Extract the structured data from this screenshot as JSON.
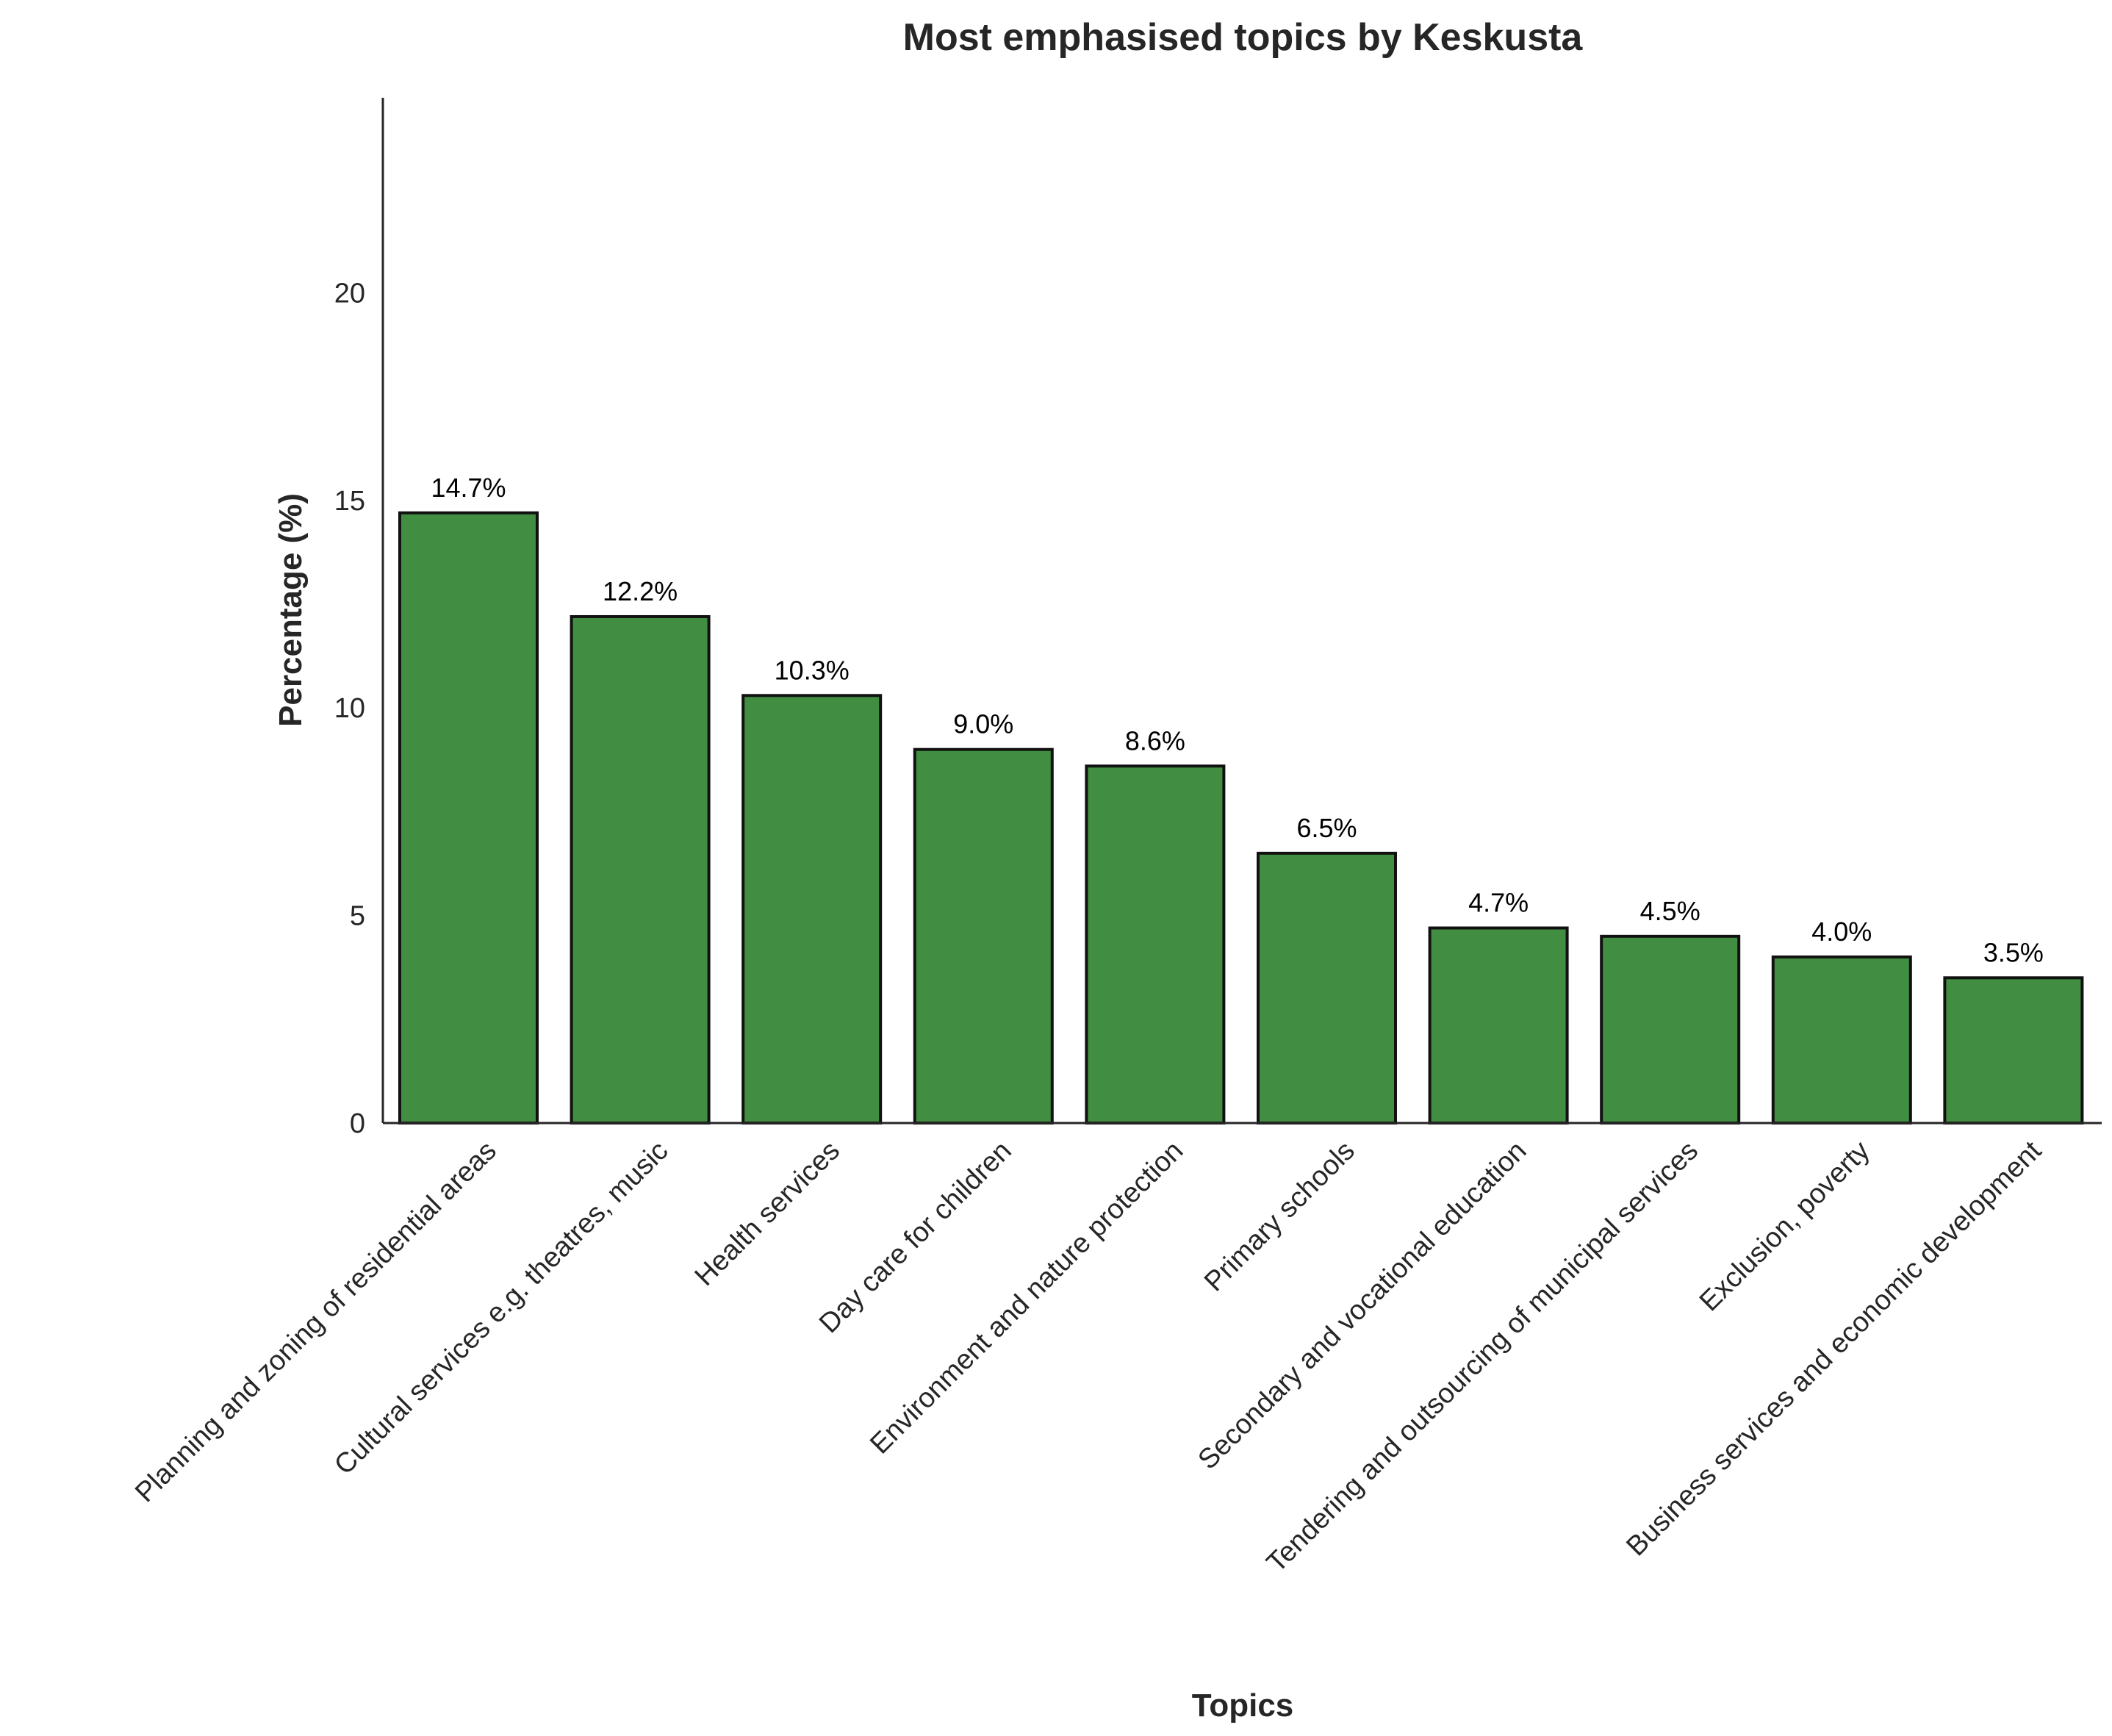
{
  "chart_data": {
    "type": "bar",
    "title": "Most emphasised topics by Keskusta",
    "xlabel": "Topics",
    "ylabel": "Percentage (%)",
    "categories": [
      "Planning and zoning of residential areas",
      "Cultural services e.g. theatres, music",
      "Health services",
      "Day care for children",
      "Environment and nature protection",
      "Primary schools",
      "Secondary and vocational education",
      "Tendering and outsourcing of municipal services",
      "Exclusion, poverty",
      "Business services and economic development"
    ],
    "values": [
      14.7,
      12.2,
      10.3,
      9.0,
      8.6,
      6.5,
      4.7,
      4.5,
      4.0,
      3.5
    ],
    "value_labels": [
      "14.7%",
      "12.2%",
      "10.3%",
      "9.0%",
      "8.6%",
      "6.5%",
      "4.7%",
      "4.5%",
      "4.0%",
      "3.5%"
    ],
    "yticks": [
      0,
      5,
      10,
      15,
      20
    ],
    "ylim": [
      0,
      24.7
    ],
    "grid": false,
    "bar_color": "#418d41",
    "bar_edge_color": "#111111"
  }
}
